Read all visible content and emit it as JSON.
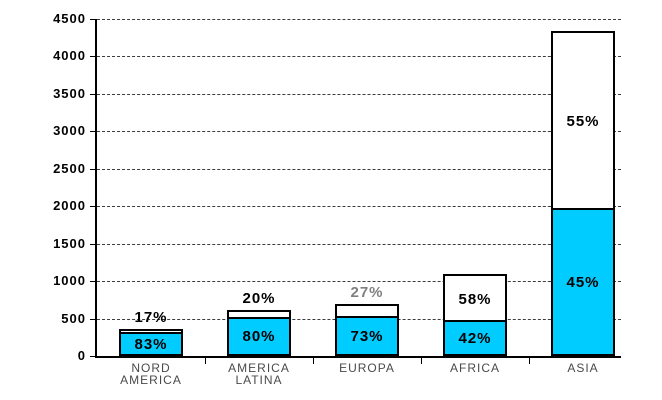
{
  "chart_data": {
    "type": "bar",
    "stacked": true,
    "title": "",
    "xlabel": "",
    "ylabel": "",
    "legend": "none",
    "grid": "horizontal-dashed",
    "y_axis": {
      "min": 0,
      "max": 4500,
      "step": 500,
      "tick_labels": [
        "0",
        "500",
        "1000",
        "1500",
        "2000",
        "2500",
        "3000",
        "3500",
        "4000",
        "4500"
      ]
    },
    "colors": {
      "urban_fill": "#00CCFF",
      "rural_fill": "#FFFFFF",
      "bar_border": "#000000"
    },
    "categories": [
      {
        "label_lines": [
          "NORD",
          "AMERICA"
        ],
        "total": 360,
        "urban_pct": 83,
        "rural_pct": 17,
        "urban_label": "83%",
        "rural_label": "17%",
        "rural_label_color": "#000000"
      },
      {
        "label_lines": [
          "AMERICA",
          "LATINA"
        ],
        "total": 620,
        "urban_pct": 80,
        "rural_pct": 20,
        "urban_label": "80%",
        "rural_label": "20%",
        "rural_label_color": "#000000"
      },
      {
        "label_lines": [
          "EUROPA"
        ],
        "total": 690,
        "urban_pct": 73,
        "rural_pct": 27,
        "urban_label": "73%",
        "rural_label": "27%",
        "rural_label_color": "#7f7f7f"
      },
      {
        "label_lines": [
          "AFRICA"
        ],
        "total": 1100,
        "urban_pct": 42,
        "rural_pct": 58,
        "urban_label": "42%",
        "rural_label": "58%",
        "rural_label_color": "#000000"
      },
      {
        "label_lines": [
          "ASIA"
        ],
        "total": 4340,
        "urban_pct": 45,
        "rural_pct": 55,
        "urban_label": "45%",
        "rural_label": "55%",
        "rural_label_color": "#000000"
      }
    ]
  }
}
